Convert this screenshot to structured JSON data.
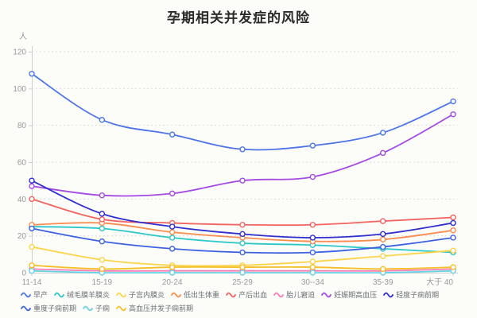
{
  "chart_data": {
    "type": "line",
    "title": "孕期相关并发症的风险",
    "xlabel": "",
    "ylabel": "人",
    "ylim": [
      0,
      120
    ],
    "y_interval": 20,
    "y_ticks": [
      0,
      20,
      40,
      60,
      80,
      100,
      120
    ],
    "grid": "horizontal dotted gridlines, light gray",
    "smooth": true,
    "legend_position": "bottom, wrapped, squiggle line icons",
    "categories": [
      "11-14",
      "15-19",
      "20-24",
      "25-29",
      "30--34",
      "35-39",
      "大于 40"
    ],
    "series": [
      {
        "name": "早产",
        "color": "#4c74e6",
        "values": [
          108,
          83,
          75,
          67,
          69,
          76,
          93
        ]
      },
      {
        "name": "绒毛膜羊膜炎",
        "color": "#2cc7c9",
        "values": [
          25,
          24,
          19,
          16,
          15,
          13,
          11
        ]
      },
      {
        "name": "子宫内膜炎",
        "color": "#fcd44a",
        "values": [
          14,
          7,
          4,
          4,
          6,
          9,
          12
        ]
      },
      {
        "name": "低出生体重",
        "color": "#fb8b4e",
        "values": [
          26,
          27,
          22,
          19,
          17,
          18,
          23
        ]
      },
      {
        "name": "产后出血",
        "color": "#f2635f",
        "values": [
          40,
          29,
          27,
          26,
          26,
          28,
          30
        ]
      },
      {
        "name": "胎儿窘迫",
        "color": "#f87cb4",
        "values": [
          2,
          1,
          1,
          1,
          1,
          1,
          2
        ]
      },
      {
        "name": "妊娠期高血压",
        "color": "#a44ae3",
        "values": [
          47,
          42,
          43,
          50,
          52,
          65,
          86
        ]
      },
      {
        "name": "轻度子痫前期",
        "color": "#2f2ed0",
        "values": [
          50,
          32,
          25,
          21,
          19,
          21,
          27
        ]
      },
      {
        "name": "重度子痫前期",
        "color": "#3c62e2",
        "values": [
          24,
          17,
          13,
          11,
          11,
          14,
          19
        ]
      },
      {
        "name": "子痫",
        "color": "#68d4e4",
        "values": [
          1,
          0,
          0,
          0,
          0,
          0,
          1
        ]
      },
      {
        "name": "高血压并发子痫前期",
        "color": "#f6bf26",
        "values": [
          4,
          2,
          3,
          3,
          3,
          2,
          3
        ]
      }
    ]
  }
}
